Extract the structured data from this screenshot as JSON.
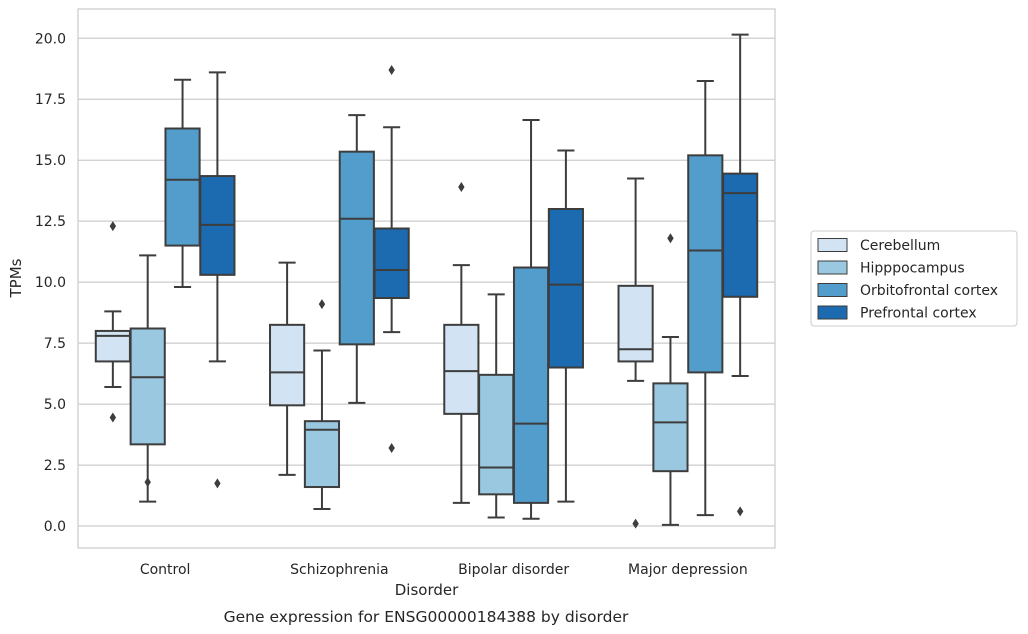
{
  "chart_data": {
    "type": "box",
    "caption": "Gene expression for ENSG00000184388 by disorder",
    "xlabel": "Disorder",
    "ylabel": "TPMs",
    "ylim": [
      -0.9,
      21.2
    ],
    "yticks": [
      0.0,
      2.5,
      5.0,
      7.5,
      10.0,
      12.5,
      15.0,
      17.5,
      20.0
    ],
    "ytick_labels": [
      "0.0",
      "2.5",
      "5.0",
      "7.5",
      "10.0",
      "12.5",
      "15.0",
      "17.5",
      "20.0"
    ],
    "grid": "horizontal",
    "legend_position": "right",
    "categories": [
      "Control",
      "Schizophrenia",
      "Bipolar disorder",
      "Major depression"
    ],
    "series": [
      {
        "name": "Cerebellum",
        "color": "#d2e3f3",
        "boxes": [
          {
            "whisker_low": 5.7,
            "q1": 6.75,
            "median": 7.8,
            "q3": 8.0,
            "whisker_high": 8.8,
            "outliers": [
              12.3,
              4.45
            ]
          },
          {
            "whisker_low": 2.1,
            "q1": 4.95,
            "median": 6.3,
            "q3": 8.25,
            "whisker_high": 10.8,
            "outliers": []
          },
          {
            "whisker_low": 0.95,
            "q1": 4.6,
            "median": 6.35,
            "q3": 8.25,
            "whisker_high": 10.7,
            "outliers": [
              13.9
            ]
          },
          {
            "whisker_low": 5.95,
            "q1": 6.75,
            "median": 7.25,
            "q3": 9.85,
            "whisker_high": 14.25,
            "outliers": [
              0.1
            ]
          }
        ]
      },
      {
        "name": "Hipppocampus",
        "color": "#9ac8e0",
        "boxes": [
          {
            "whisker_low": 1.0,
            "q1": 3.35,
            "median": 6.1,
            "q3": 8.1,
            "whisker_high": 11.1,
            "outliers": [
              1.8
            ]
          },
          {
            "whisker_low": 0.7,
            "q1": 1.6,
            "median": 3.95,
            "q3": 4.3,
            "whisker_high": 7.2,
            "outliers": [
              9.1
            ]
          },
          {
            "whisker_low": 0.35,
            "q1": 1.3,
            "median": 2.4,
            "q3": 6.2,
            "whisker_high": 9.5,
            "outliers": []
          },
          {
            "whisker_low": 0.05,
            "q1": 2.25,
            "median": 4.25,
            "q3": 5.85,
            "whisker_high": 7.75,
            "outliers": [
              11.8
            ]
          }
        ]
      },
      {
        "name": "Orbitofrontal cortex",
        "color": "#529dcc",
        "boxes": [
          {
            "whisker_low": 9.8,
            "q1": 11.5,
            "median": 14.2,
            "q3": 16.3,
            "whisker_high": 18.3,
            "outliers": []
          },
          {
            "whisker_low": 5.05,
            "q1": 7.45,
            "median": 12.6,
            "q3": 15.35,
            "whisker_high": 16.85,
            "outliers": []
          },
          {
            "whisker_low": 0.3,
            "q1": 0.95,
            "median": 4.2,
            "q3": 10.6,
            "whisker_high": 16.65,
            "outliers": []
          },
          {
            "whisker_low": 0.45,
            "q1": 6.3,
            "median": 11.3,
            "q3": 15.2,
            "whisker_high": 18.25,
            "outliers": []
          }
        ]
      },
      {
        "name": "Prefrontal cortex",
        "color": "#1c6aaf",
        "boxes": [
          {
            "whisker_low": 6.75,
            "q1": 10.3,
            "median": 12.35,
            "q3": 14.35,
            "whisker_high": 18.6,
            "outliers": [
              1.75
            ]
          },
          {
            "whisker_low": 7.95,
            "q1": 9.35,
            "median": 10.5,
            "q3": 12.2,
            "whisker_high": 16.35,
            "outliers": [
              18.7,
              3.2
            ]
          },
          {
            "whisker_low": 1.0,
            "q1": 6.5,
            "median": 9.9,
            "q3": 13.0,
            "whisker_high": 15.4,
            "outliers": []
          },
          {
            "whisker_low": 6.15,
            "q1": 9.4,
            "median": 13.65,
            "q3": 14.45,
            "whisker_high": 20.15,
            "outliers": [
              0.6
            ]
          }
        ]
      }
    ]
  }
}
